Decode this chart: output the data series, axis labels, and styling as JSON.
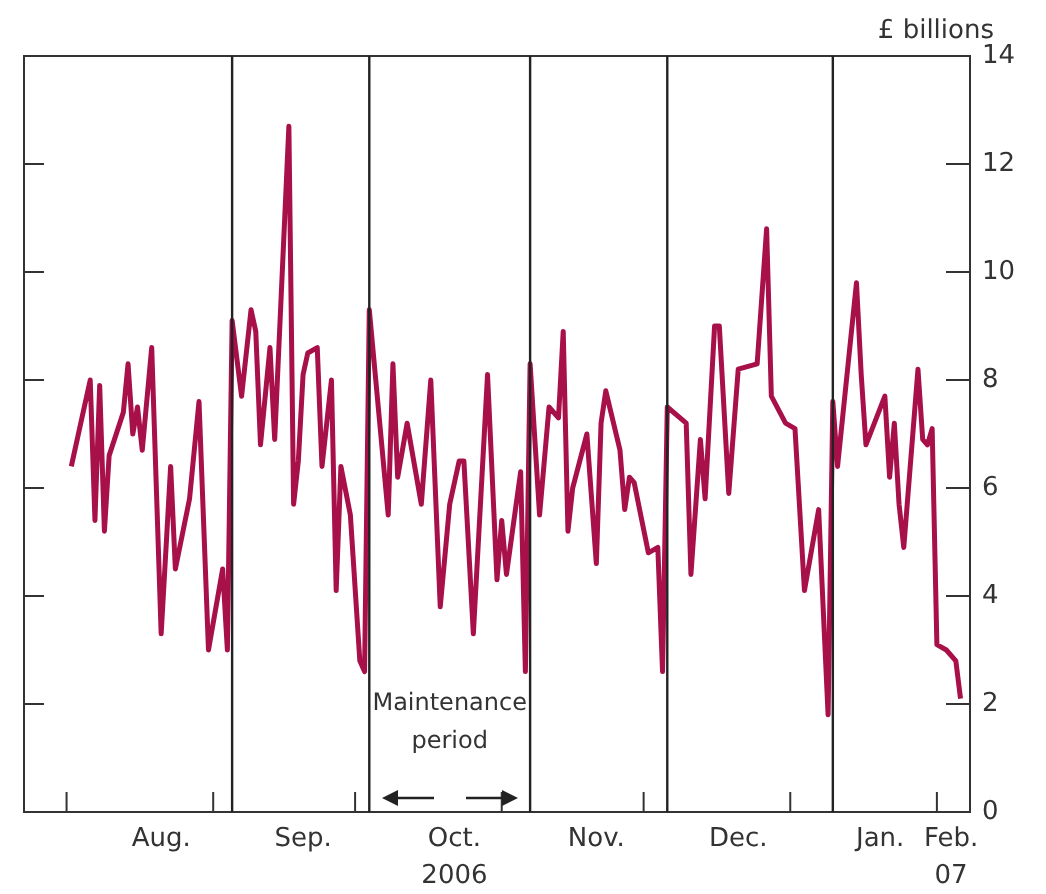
{
  "chart_data": {
    "type": "line",
    "ylabel": "£ billions",
    "color": "#a8104a",
    "x": [
      "2006-08-02",
      "2006-08-06",
      "2006-08-07",
      "2006-08-08",
      "2006-08-09",
      "2006-08-10",
      "2006-08-13",
      "2006-08-14",
      "2006-08-15",
      "2006-08-16",
      "2006-08-17",
      "2006-08-19",
      "2006-08-21",
      "2006-08-23",
      "2006-08-24",
      "2006-08-27",
      "2006-08-29",
      "2006-08-31",
      "2006-09-03",
      "2006-09-04",
      "2006-09-05",
      "2006-09-07",
      "2006-09-09",
      "2006-09-10",
      "2006-09-11",
      "2006-09-13",
      "2006-09-14",
      "2006-09-17",
      "2006-09-18",
      "2006-09-19",
      "2006-09-20",
      "2006-09-21",
      "2006-09-23",
      "2006-09-24",
      "2006-09-26",
      "2006-09-27",
      "2006-09-28",
      "2006-09-30",
      "2006-10-02",
      "2006-10-03",
      "2006-10-04",
      "2006-10-08",
      "2006-10-09",
      "2006-10-10",
      "2006-10-12",
      "2006-10-15",
      "2006-10-17",
      "2006-10-19",
      "2006-10-21",
      "2006-10-23",
      "2006-10-24",
      "2006-10-26",
      "2006-10-29",
      "2006-10-31",
      "2006-11-01",
      "2006-11-02",
      "2006-11-05",
      "2006-11-06",
      "2006-11-07",
      "2006-11-09",
      "2006-11-11",
      "2006-11-13",
      "2006-11-14",
      "2006-11-15",
      "2006-11-16",
      "2006-11-19",
      "2006-11-21",
      "2006-11-22",
      "2006-11-23",
      "2006-11-26",
      "2006-11-27",
      "2006-11-28",
      "2006-11-29",
      "2006-12-02",
      "2006-12-04",
      "2006-12-05",
      "2006-12-06",
      "2006-12-10",
      "2006-12-11",
      "2006-12-13",
      "2006-12-14",
      "2006-12-16",
      "2006-12-17",
      "2006-12-19",
      "2006-12-21",
      "2006-12-25",
      "2006-12-27",
      "2006-12-28",
      "2006-12-31",
      "2007-01-02",
      "2007-01-04",
      "2007-01-07",
      "2007-01-09",
      "2007-01-10",
      "2007-01-11",
      "2007-01-15",
      "2007-01-16",
      "2007-01-17",
      "2007-01-21",
      "2007-01-22",
      "2007-01-23",
      "2007-01-24",
      "2007-01-25",
      "2007-01-28",
      "2007-01-29",
      "2007-01-30",
      "2007-01-31",
      "2007-02-01",
      "2007-02-03",
      "2007-02-05",
      "2007-02-06"
    ],
    "values": [
      6.4,
      8.0,
      5.4,
      7.9,
      5.2,
      6.6,
      7.4,
      8.3,
      7.0,
      7.5,
      6.7,
      8.6,
      3.3,
      6.4,
      4.5,
      5.8,
      7.6,
      3.0,
      4.5,
      3.0,
      9.1,
      7.7,
      9.3,
      8.9,
      6.8,
      8.6,
      6.9,
      12.7,
      5.7,
      6.5,
      8.1,
      8.5,
      8.6,
      6.4,
      8.0,
      4.1,
      6.4,
      5.5,
      2.8,
      2.6,
      9.3,
      5.5,
      8.3,
      6.2,
      7.2,
      5.7,
      8.0,
      3.8,
      5.7,
      6.5,
      6.5,
      3.3,
      8.1,
      4.3,
      5.4,
      4.4,
      6.3,
      2.6,
      8.3,
      5.5,
      7.5,
      7.3,
      8.9,
      5.2,
      6.0,
      7.0,
      4.6,
      7.2,
      7.8,
      6.7,
      5.6,
      6.2,
      6.1,
      4.8,
      4.9,
      2.6,
      7.5,
      7.2,
      4.4,
      6.9,
      5.8,
      9.0,
      9.0,
      5.9,
      8.2,
      8.3,
      10.8,
      7.7,
      7.2,
      7.1,
      4.1,
      5.6,
      1.8,
      7.6,
      6.4,
      9.8,
      8.1,
      6.8,
      7.7,
      6.2,
      7.2,
      5.7,
      4.9,
      8.2,
      6.9,
      6.8,
      7.1,
      3.1,
      3.0,
      2.8,
      2.1
    ],
    "xlim": [
      "2006-07-23",
      "2007-02-08"
    ],
    "xticks": [
      {
        "value": "2006-08-01",
        "label": null
      },
      {
        "value": "2006-08-21",
        "label": "Aug."
      },
      {
        "value": "2006-09-01",
        "label": null
      },
      {
        "value": "2006-09-20",
        "label": "Sep."
      },
      {
        "value": "2006-10-01",
        "label": null
      },
      {
        "value": "2006-10-22",
        "label": "Oct.\n2006"
      },
      {
        "value": "2006-11-01",
        "label": null
      },
      {
        "value": "2006-11-21",
        "label": "Nov."
      },
      {
        "value": "2006-12-01",
        "label": null
      },
      {
        "value": "2006-12-21",
        "label": "Dec."
      },
      {
        "value": "2007-01-01",
        "label": null
      },
      {
        "value": "2007-01-20",
        "label": "Jan."
      },
      {
        "value": "2007-02-01",
        "label": null
      },
      {
        "value": "2007-02-04",
        "label": "Feb.\n07"
      }
    ],
    "ylim": [
      0,
      14
    ],
    "yticks": [
      0,
      2,
      4,
      6,
      8,
      10,
      12,
      14
    ],
    "ref_lines": [
      {
        "axis": "x",
        "value": "2006-09-05",
        "color": "#222222"
      },
      {
        "axis": "x",
        "value": "2006-10-04",
        "color": "#222222"
      },
      {
        "axis": "x",
        "value": "2006-11-07",
        "color": "#222222"
      },
      {
        "axis": "x",
        "value": "2006-12-06",
        "color": "#222222"
      },
      {
        "axis": "x",
        "value": "2007-01-10",
        "color": "#222222"
      }
    ],
    "annotations": [
      "Maintenance period"
    ],
    "grid": false
  }
}
